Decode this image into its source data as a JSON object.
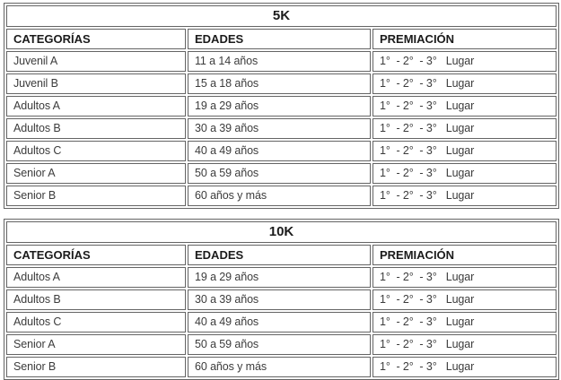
{
  "colors": {
    "border": "#646464",
    "text": "#3c3c3c",
    "heading": "#1b1b1b",
    "background": "#ffffff"
  },
  "tables": [
    {
      "title": "5K",
      "columns": [
        "CATEGORÍAS",
        "EDADES",
        "PREMIACIÓN"
      ],
      "rows": [
        [
          "Juvenil A",
          "11 a 14 años",
          "1°  - 2°  - 3°   Lugar"
        ],
        [
          "Juvenil B",
          "15 a 18 años",
          "1°  - 2°  - 3°   Lugar"
        ],
        [
          "Adultos A",
          "19 a 29 años",
          "1°  - 2°  - 3°   Lugar"
        ],
        [
          "Adultos B",
          "30 a 39 años",
          "1°  - 2°  - 3°   Lugar"
        ],
        [
          "Adultos C",
          "40 a 49 años",
          "1°  - 2°  - 3°   Lugar"
        ],
        [
          "Senior A",
          "50 a 59 años",
          "1°  - 2°  - 3°   Lugar"
        ],
        [
          "Senior B",
          "60 años y más",
          "1°  - 2°  - 3°   Lugar"
        ]
      ]
    },
    {
      "title": "10K",
      "columns": [
        "CATEGORÍAS",
        "EDADES",
        "PREMIACIÓN"
      ],
      "rows": [
        [
          "Adultos A",
          "19 a 29 años",
          "1°  - 2°  - 3°   Lugar"
        ],
        [
          "Adultos B",
          "30 a 39 años",
          "1°  - 2°  - 3°   Lugar"
        ],
        [
          "Adultos C",
          "40 a 49 años",
          "1°  - 2°  - 3°   Lugar"
        ],
        [
          "Senior A",
          "50 a 59 años",
          "1°  - 2°  - 3°   Lugar"
        ],
        [
          "Senior B",
          "60 años y más",
          "1°  - 2°  - 3°   Lugar"
        ]
      ]
    }
  ]
}
